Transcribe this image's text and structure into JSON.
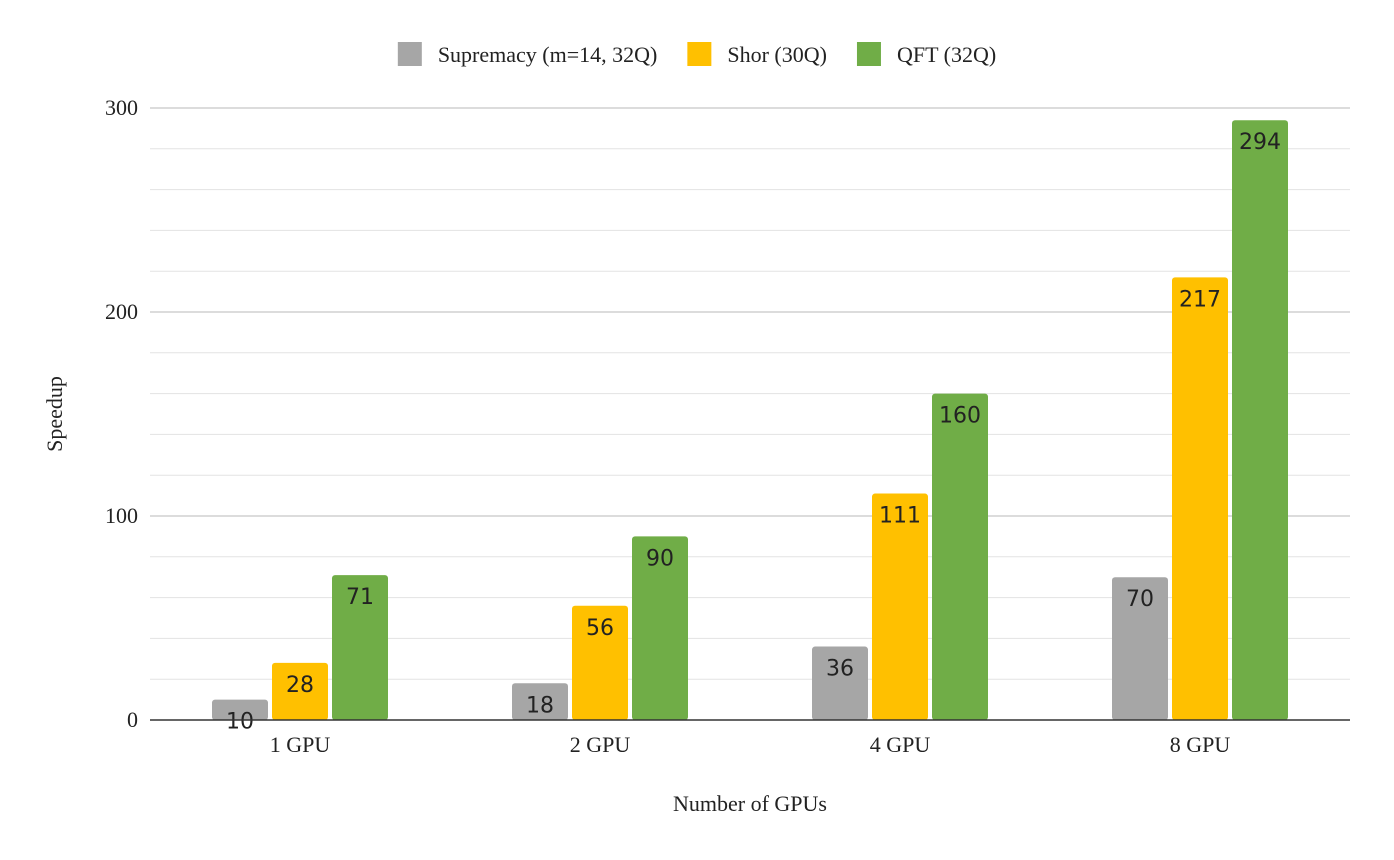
{
  "chart_data": {
    "type": "bar",
    "title": "",
    "xlabel": "Number of GPUs",
    "ylabel": "Speedup",
    "categories": [
      "1 GPU",
      "2 GPU",
      "4 GPU",
      "8 GPU"
    ],
    "series": [
      {
        "name": "Supremacy (m=14, 32Q)",
        "color": "#a6a6a6",
        "values": [
          10,
          18,
          36,
          70
        ]
      },
      {
        "name": "Shor (30Q)",
        "color": "#ffc000",
        "values": [
          28,
          56,
          111,
          217
        ]
      },
      {
        "name": "QFT (32Q)",
        "color": "#70ad47",
        "values": [
          71,
          90,
          160,
          294
        ]
      }
    ],
    "ylim": [
      0,
      300
    ],
    "yticks": [
      0,
      100,
      200,
      300
    ],
    "minor_grid_step": 20,
    "grid": true,
    "legend_position": "top-center",
    "data_labels": true
  }
}
